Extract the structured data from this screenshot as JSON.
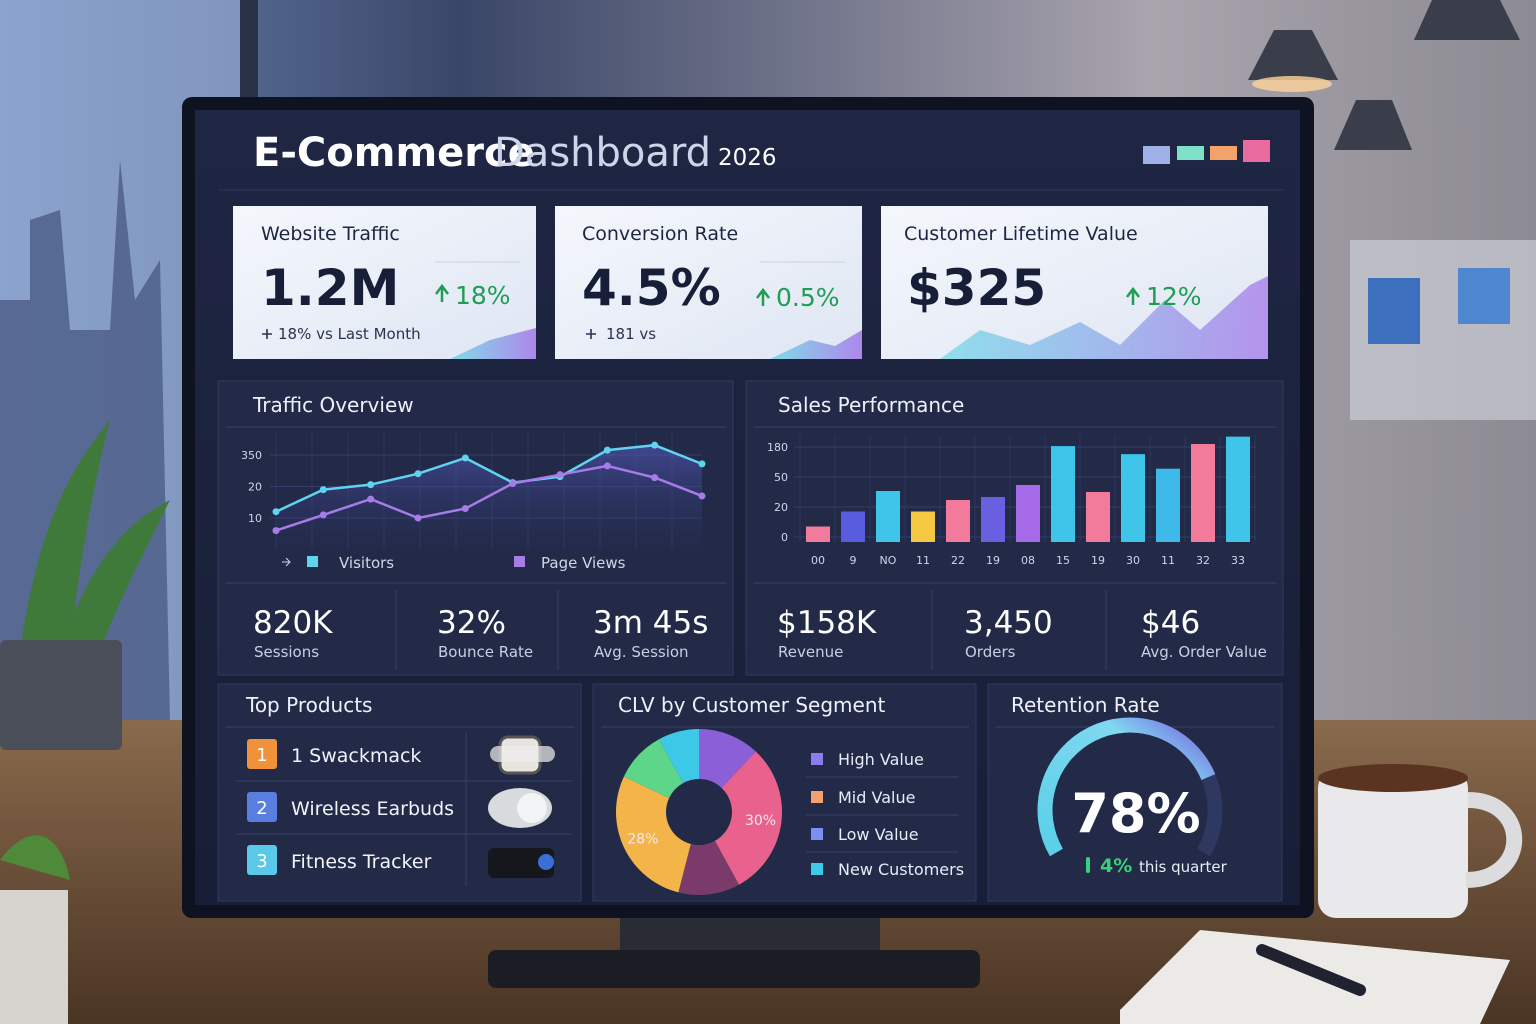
{
  "header": {
    "title_bold": "E-Commerce",
    "title_light": "Dashboard",
    "year": "2026"
  },
  "kpis": [
    {
      "label": "Website Traffic",
      "value": "1.2M",
      "change": "18%",
      "note": "18% vs Last Month"
    },
    {
      "label": "Conversion Rate",
      "value": "4.5%",
      "change": "0.5%",
      "note": "181 vs"
    },
    {
      "label": "Customer Lifetime Value",
      "value": "$325",
      "change": "12%"
    }
  ],
  "traffic_overview": {
    "title": "Traffic Overview",
    "chart": {
      "type": "line",
      "categories": [
        null,
        null,
        null,
        null,
        null,
        null,
        null,
        null,
        null,
        null
      ],
      "series": [
        {
          "name": "Visitors",
          "color": "#5fd3f0",
          "values": [
            12,
            19,
            40,
            154,
            319,
            61,
            123,
            401,
            453,
            257
          ]
        },
        {
          "name": "Page Views",
          "color": "#a77be8",
          "values": [
            6,
            11,
            16,
            10,
            13,
            51,
            144,
            236,
            113,
            17
          ]
        }
      ],
      "ylim": [
        0,
        600
      ],
      "yticks": [
        10,
        20,
        350
      ],
      "grid": true
    },
    "stats": [
      {
        "value": "820K",
        "label": "Sessions"
      },
      {
        "value": "32%",
        "label": "Bounce Rate"
      },
      {
        "value": "3m 45s",
        "label": "Avg. Session"
      }
    ]
  },
  "sales_performance": {
    "title": "Sales Performance",
    "chart": {
      "type": "bar",
      "categories": [
        "00",
        "9",
        "NO",
        "11",
        "22",
        "19",
        "08",
        "15",
        "19",
        "30",
        "11",
        "32",
        "33"
      ],
      "values": [
        7,
        17,
        36,
        17,
        27,
        30,
        42,
        184,
        35,
        149,
        86,
        193,
        225
      ],
      "colors": [
        "#f27a9a",
        "#5a5ce0",
        "#3fc4ea",
        "#f5c842",
        "#f27a9a",
        "#6a5fe0",
        "#a56be8",
        "#3fc4ea",
        "#f27a9a",
        "#3fc4ea",
        "#3fb8ea",
        "#f27a9a",
        "#3fc4ea"
      ],
      "ylim": [
        0,
        230
      ],
      "yticks": [
        0,
        20,
        50,
        180
      ],
      "grid": true
    },
    "stats": [
      {
        "value": "$158K",
        "label": "Revenue"
      },
      {
        "value": "3,450",
        "label": "Orders"
      },
      {
        "value": "$46",
        "label": "Avg. Order Value"
      }
    ]
  },
  "top_products": {
    "title": "Top Products",
    "items": [
      {
        "rank": "1",
        "name": "1 Swackmack",
        "color": "#f0923a"
      },
      {
        "rank": "2",
        "name": "Wireless Earbuds",
        "color": "#5a7de0"
      },
      {
        "rank": "3",
        "name": "Fitness Tracker",
        "color": "#5ac8e8"
      }
    ]
  },
  "clv_segments": {
    "title": "CLV by Customer Segment",
    "chart": {
      "type": "pie",
      "values": [
        12,
        30,
        12,
        28,
        10,
        8
      ],
      "value_labels": [
        null,
        "30%",
        null,
        "28%",
        null,
        null
      ],
      "colors": [
        "#8a5fd8",
        "#e9628e",
        "#7a3a6a",
        "#f3b54a",
        "#5ed68a",
        "#3ec8e8"
      ]
    },
    "legend": [
      {
        "name": "High Value",
        "color": "#8b7cf0"
      },
      {
        "name": "Mid Value",
        "color": "#f4a070"
      },
      {
        "name": "Low Value",
        "color": "#7d8ff0"
      },
      {
        "name": "New Customers",
        "color": "#3ec8e8"
      }
    ]
  },
  "retention": {
    "title": "Retention Rate",
    "value": 78,
    "value_label": "78%",
    "range": [
      0,
      100
    ],
    "change": "4%",
    "change_note": "this quarter"
  }
}
